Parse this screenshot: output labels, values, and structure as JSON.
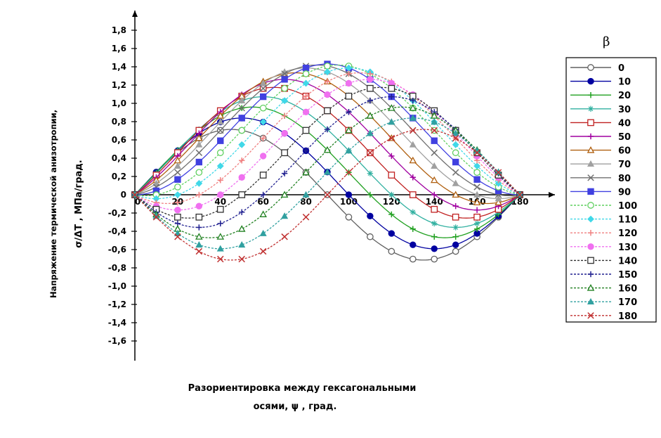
{
  "chart_data": {
    "type": "line",
    "xlabel_line1": "Разориентировка между гексагональными",
    "xlabel_line2": "осями, ψ , град.",
    "ylabel_line1": "Напряжение термической анизотропии,",
    "ylabel_line2": "σ/ΔT , МПа/град.",
    "legend_title": "β",
    "xlim": [
      0,
      180
    ],
    "ylim": [
      -1.6,
      1.8
    ],
    "x_ticks": [
      0,
      20,
      40,
      60,
      80,
      100,
      120,
      140,
      160,
      180
    ],
    "x_tick_labels": [
      "0",
      "20",
      "40",
      "60",
      "80",
      "100",
      "120",
      "140",
      "160",
      "180"
    ],
    "y_ticks": [
      -1.6,
      -1.4,
      -1.2,
      -1.0,
      -0.8,
      -0.6,
      -0.4,
      -0.2,
      0,
      0.2,
      0.4,
      0.6,
      0.8,
      1.0,
      1.2,
      1.4,
      1.6,
      1.8
    ],
    "y_tick_labels": [
      "-1,6",
      "-1,4",
      "-1,2",
      "-1,0",
      "-0,8",
      "-0,6",
      "-0,4",
      "-0,2",
      "0",
      "0,2",
      "0,4",
      "0,6",
      "0,8",
      "1,0",
      "1,2",
      "1,4",
      "1,6",
      "1,8"
    ],
    "amplitude": 1.43,
    "grid": false,
    "legend_position": "right",
    "x": [
      0,
      10,
      20,
      30,
      40,
      50,
      60,
      70,
      80,
      90,
      100,
      110,
      120,
      130,
      140,
      150,
      160,
      170,
      180
    ],
    "series": [
      {
        "name": "0",
        "color": "#606060",
        "marker": "open-circle",
        "dash": false
      },
      {
        "name": "10",
        "color": "#0000a0",
        "marker": "filled-circle",
        "dash": false
      },
      {
        "name": "20",
        "color": "#20a020",
        "marker": "plus",
        "dash": false
      },
      {
        "name": "30",
        "color": "#30b0a0",
        "marker": "star",
        "dash": false
      },
      {
        "name": "40",
        "color": "#c02020",
        "marker": "open-square",
        "dash": false
      },
      {
        "name": "50",
        "color": "#a000a0",
        "marker": "plus",
        "dash": false
      },
      {
        "name": "60",
        "color": "#b06010",
        "marker": "open-triangle",
        "dash": false
      },
      {
        "name": "70",
        "color": "#a0a0a0",
        "marker": "filled-triangle",
        "dash": false
      },
      {
        "name": "80",
        "color": "#707070",
        "marker": "x",
        "dash": false
      },
      {
        "name": "90",
        "color": "#4040e0",
        "marker": "filled-square",
        "dash": false
      },
      {
        "name": "100",
        "color": "#60d060",
        "marker": "open-circle",
        "dash": true
      },
      {
        "name": "110",
        "color": "#40d8e8",
        "marker": "filled-diamond",
        "dash": true
      },
      {
        "name": "120",
        "color": "#f08080",
        "marker": "plus",
        "dash": true
      },
      {
        "name": "130",
        "color": "#f070f0",
        "marker": "filled-circle",
        "dash": true
      },
      {
        "name": "140",
        "color": "#303030",
        "marker": "open-square",
        "dash": true
      },
      {
        "name": "150",
        "color": "#202090",
        "marker": "plus",
        "dash": true
      },
      {
        "name": "160",
        "color": "#208020",
        "marker": "open-triangle",
        "dash": true
      },
      {
        "name": "170",
        "color": "#30a0a0",
        "marker": "filled-triangle",
        "dash": true
      },
      {
        "name": "180",
        "color": "#c03030",
        "marker": "x",
        "dash": true
      }
    ]
  }
}
